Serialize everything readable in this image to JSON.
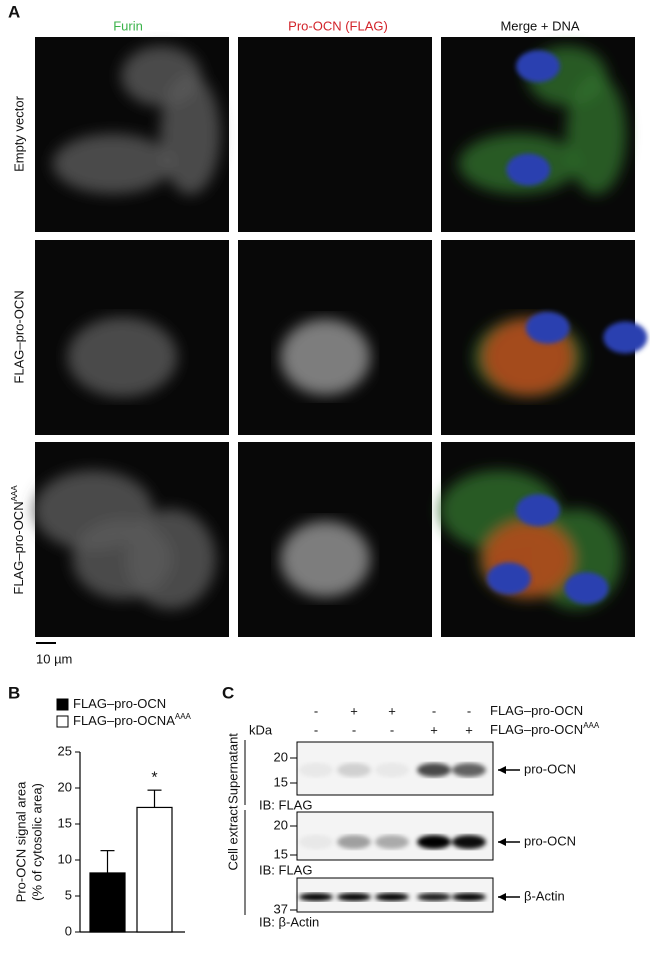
{
  "panel_a": {
    "letter": "A",
    "columns": [
      "Furin",
      "Pro-OCN (FLAG)",
      "Merge + DNA"
    ],
    "rows": [
      {
        "label": "Empty vector"
      },
      {
        "label": "FLAG–pro-OCN"
      },
      {
        "label": "FLAG–pro-OCN",
        "sup": "AAA"
      }
    ],
    "scale_bar": "10 µm"
  },
  "panel_b": {
    "letter": "B"
  },
  "chart_data": {
    "type": "bar",
    "categories": [
      null
    ],
    "series": [
      {
        "name": "FLAG–pro-OCN",
        "color": "#000000",
        "values": [
          8.2
        ],
        "errors": [
          3.1
        ]
      },
      {
        "name": "FLAG–pro-OCNA",
        "name_sup": "AAA",
        "color": "#ffffff",
        "values": [
          17.3
        ],
        "errors": [
          2.4
        ]
      }
    ],
    "ylabel": [
      "Pro-OCN signal area",
      "(% of cytosolic area)"
    ],
    "ylim": [
      0,
      25
    ],
    "yticks": [
      0,
      5,
      10,
      15,
      20,
      25
    ],
    "annotation": "*"
  },
  "panel_c": {
    "letter": "C",
    "conditions": [
      {
        "label": "FLAG–pro-OCN",
        "signs": [
          "-",
          "+",
          "+",
          "-",
          "-"
        ]
      },
      {
        "label": "FLAG–pro-OCN",
        "sup": "AAA",
        "signs": [
          "-",
          "-",
          "-",
          "+",
          "+"
        ]
      }
    ],
    "unit": "kDa",
    "blots": [
      {
        "group": "Supernatant",
        "markers": [
          "20",
          "15"
        ],
        "ib": "IB: FLAG",
        "band": "pro-OCN"
      },
      {
        "group": "Cell extract",
        "markers": [
          "20",
          "15"
        ],
        "ib": "IB: FLAG",
        "band": "pro-OCN"
      },
      {
        "markers": [
          "37"
        ],
        "ib": "IB: β-Actin",
        "band": "β-Actin"
      }
    ]
  }
}
